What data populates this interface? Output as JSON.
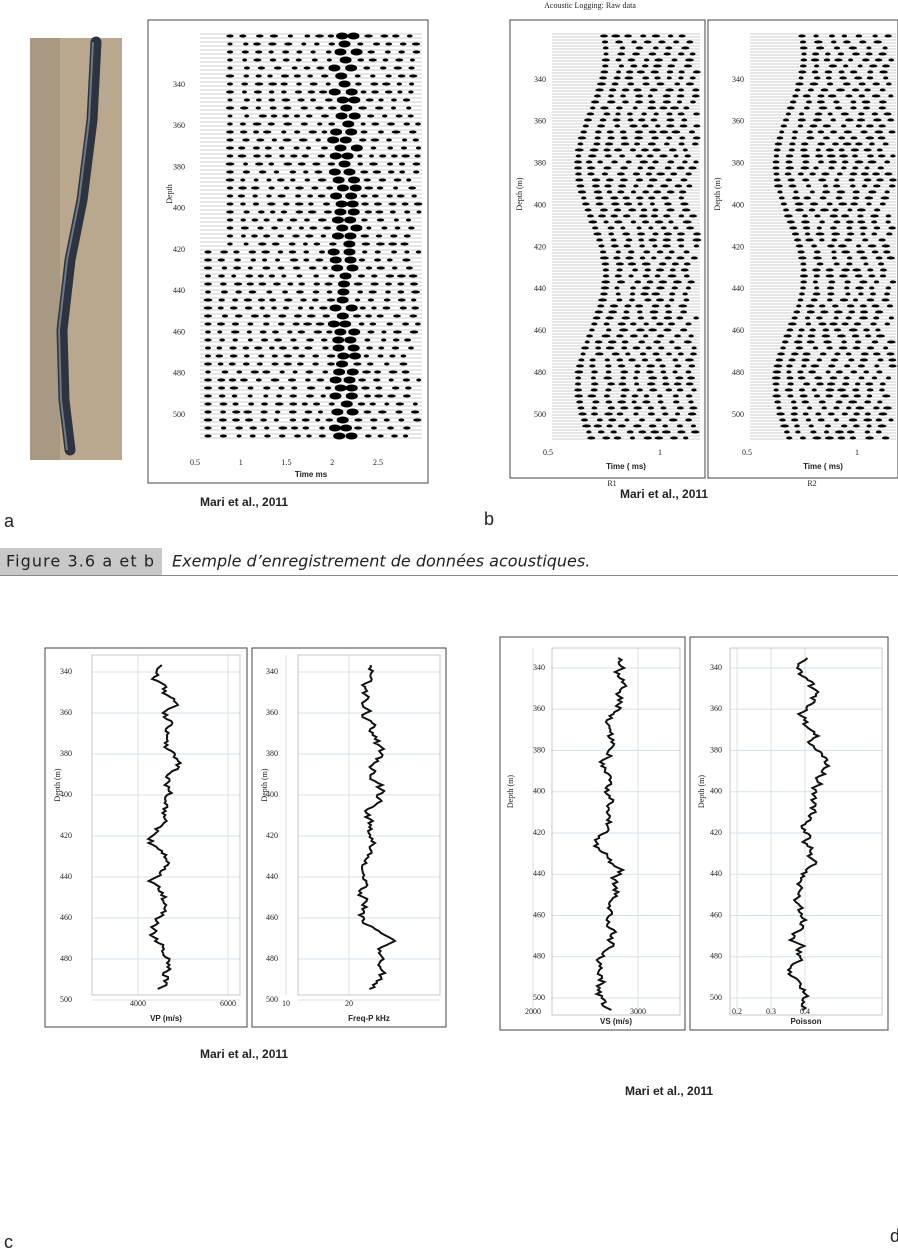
{
  "figure_top": {
    "panel_a": {
      "label": "a",
      "credit": "Mari et al., 2011",
      "plot": {
        "y_axis_label": "Depth",
        "x_axis_label": "Time ms",
        "yticks": [
          340,
          360,
          380,
          400,
          420,
          440,
          460,
          480,
          500
        ],
        "xticks": [
          0.5,
          1,
          1.5,
          2,
          2.5
        ]
      }
    },
    "panel_b": {
      "label": "b",
      "title": "Acoustic Logging: Raw data",
      "credit": "Mari et al., 2011",
      "plots": [
        {
          "y_axis_label": "Depth (m)",
          "x_axis_label": "Time ( ms)",
          "sublabel": "R1",
          "yticks": [
            340,
            360,
            380,
            400,
            420,
            440,
            460,
            480,
            500
          ],
          "xticks": [
            0.5,
            1
          ]
        },
        {
          "y_axis_label": "Depth (m)",
          "x_axis_label": "Time ( ms)",
          "sublabel": "R2",
          "yticks": [
            340,
            360,
            380,
            400,
            420,
            440,
            460,
            480,
            500
          ],
          "xticks": [
            0.5,
            1
          ]
        }
      ]
    }
  },
  "caption": {
    "number": "Figure 3.6 a et b",
    "text": "Exemple d’enregistrement de données acoustiques."
  },
  "figure_bottom": {
    "panel_c": {
      "label": "c",
      "credit": "Mari et al., 2011",
      "plots": [
        {
          "y_axis_label": "Depth (m)",
          "x_axis_label": "VP (m/s)",
          "yticks": [
            340,
            360,
            380,
            400,
            420,
            440,
            460,
            480,
            500
          ],
          "xticks": [
            4000,
            6000
          ]
        },
        {
          "y_axis_label": "Depth (m)",
          "x_axis_label": "Freq-P kHz",
          "yticks": [
            340,
            360,
            380,
            400,
            420,
            440,
            460,
            480,
            500
          ],
          "xticks": [
            10,
            20
          ]
        }
      ]
    },
    "panel_d": {
      "label": "d",
      "credit": "Mari et al., 2011",
      "plots": [
        {
          "y_axis_label": "Depth (m)",
          "x_axis_label": "VS (m/s)",
          "yticks": [
            340,
            360,
            380,
            400,
            420,
            440,
            460,
            480,
            500
          ],
          "xticks": [
            2000,
            3000
          ]
        },
        {
          "y_axis_label": "Depth (m)",
          "x_axis_label": "Poisson",
          "yticks": [
            340,
            360,
            380,
            400,
            420,
            440,
            460,
            480,
            500
          ],
          "xticks": [
            0.2,
            0.3,
            0.4
          ]
        }
      ]
    }
  }
}
